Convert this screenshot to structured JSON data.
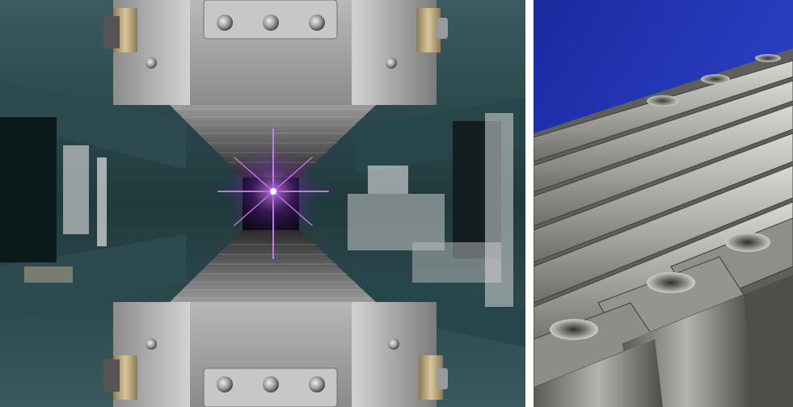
{
  "figure": {
    "panels": [
      {
        "id": "left",
        "subject": "undulator-magnet-gap-with-beam"
      },
      {
        "id": "right",
        "subject": "undulator-magnet-array-closeup"
      }
    ],
    "colors": {
      "background_teal": "#3f6166",
      "steel_light": "#c9c9c9",
      "steel_dark": "#6d6d6d",
      "brass": "#b8a57a",
      "beam_violet": "#c04bff",
      "blue_backdrop": "#1c2fb0"
    }
  }
}
